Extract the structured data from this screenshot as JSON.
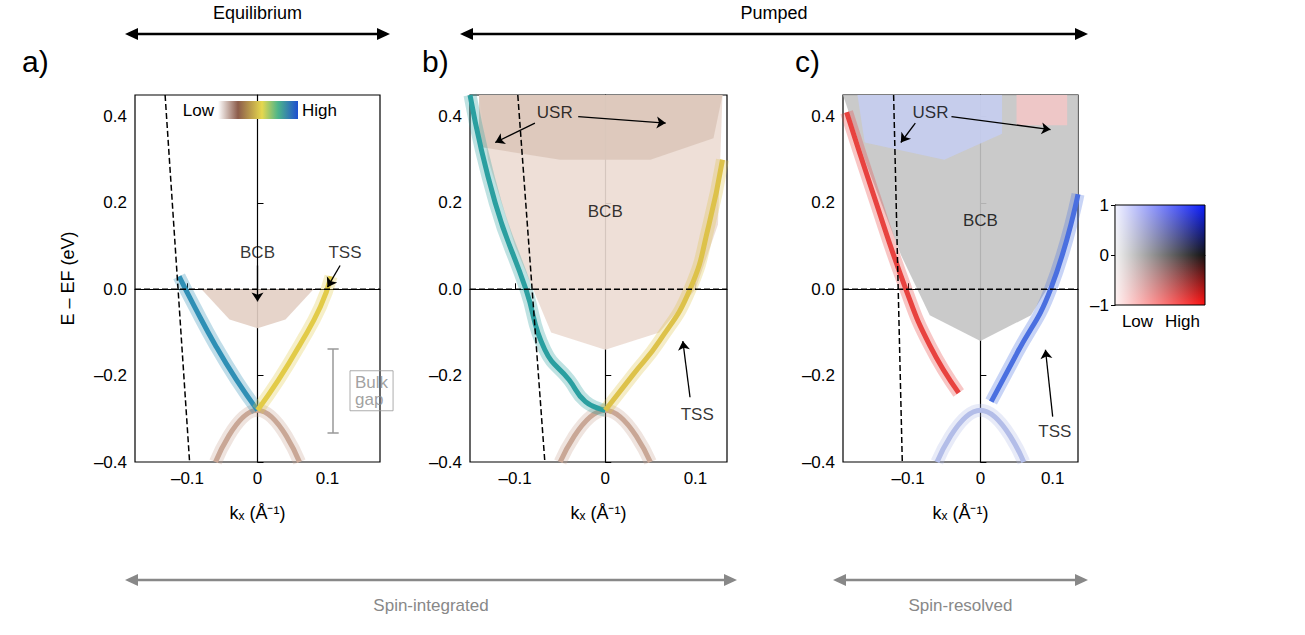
{
  "chart_data": [
    {
      "type": "line",
      "panel": "a)",
      "xlabel": "kₓ (Å⁻¹)",
      "ylabel": "E – EF (eV)",
      "xlim": [
        -0.175,
        0.175
      ],
      "xticks": [
        {
          "value": -0.1,
          "label": "–0.1"
        },
        0,
        0.1
      ],
      "ylim": [
        -0.4,
        0.45
      ],
      "yticks": [
        {
          "value": -0.4,
          "label": "–0.4"
        },
        {
          "value": -0.2,
          "label": "–0.2"
        },
        {
          "value": 0,
          "label": "0.0"
        },
        0.2,
        0.4
      ],
      "colorbar": {
        "labels": [
          "Low",
          "High"
        ]
      },
      "series": [
        {
          "type": "area",
          "color": "#e3cfc4",
          "x": [
            -0.08,
            -0.04,
            0,
            0.04,
            0.08
          ],
          "values": [
            0,
            -0.07,
            -0.09,
            -0.07,
            0
          ]
        },
        {
          "color": "#c9a796",
          "x": [
            -0.06,
            0,
            0.06
          ],
          "values": [
            -0.4,
            -0.28,
            -0.4
          ]
        },
        {
          "color": "#2f8fb5",
          "x": [
            -0.112,
            -0.09,
            -0.06,
            -0.03,
            0
          ],
          "values": [
            0.03,
            -0.04,
            -0.13,
            -0.21,
            -0.28
          ]
        },
        {
          "color": "#e2cb48",
          "x": [
            0,
            0.03,
            0.06,
            0.09,
            0.105
          ],
          "values": [
            -0.28,
            -0.21,
            -0.13,
            -0.04,
            0.03
          ]
        },
        {
          "color": "#000000",
          "line_style": "dashed",
          "x": [
            -0.175,
            0.175
          ],
          "values": [
            0,
            0
          ]
        },
        {
          "color": "#000000",
          "line_style": "dashed",
          "x": [
            -0.132,
            -0.097
          ],
          "values": [
            0.45,
            -0.4
          ]
        }
      ],
      "annotations": [
        {
          "text": "BCB",
          "x": 0,
          "y": 0.085,
          "arrows": [
            {
              "from": [
                0,
                0.055
              ],
              "to": [
                0,
                -0.028
              ]
            }
          ]
        },
        {
          "text": "TSS",
          "x": 0.125,
          "y": 0.085,
          "arrows": [
            {
              "from": [
                0.118,
                0.055
              ],
              "to": [
                0.1,
                0.005
              ]
            }
          ]
        },
        {
          "text": "Bulk gap",
          "x": 0.125,
          "y": -0.235,
          "bracket": {
            "x": 0.108,
            "y": [
              -0.333,
              -0.138
            ]
          }
        }
      ]
    },
    {
      "type": "line",
      "panel": "b)",
      "xlabel": "kₓ (Å⁻¹)",
      "xlim": [
        -0.15,
        0.135
      ],
      "xticks": [
        {
          "value": -0.1,
          "label": "–0.1"
        },
        0,
        0.1
      ],
      "ylim": [
        -0.4,
        0.45
      ],
      "yticks": [
        {
          "value": -0.4,
          "label": "–0.4"
        },
        {
          "value": -0.2,
          "label": "–0.2"
        },
        {
          "value": 0,
          "label": "0.0"
        },
        0.2,
        0.4
      ],
      "series": [
        {
          "type": "area",
          "color": "#ecdcd3",
          "x": [
            -0.06,
            0,
            0.06,
            0.1,
            0.125,
            0.13,
            -0.14,
            -0.13,
            -0.1
          ],
          "values": [
            -0.1,
            -0.14,
            -0.1,
            0,
            0.15,
            0.45,
            0.45,
            0.3,
            0.1
          ]
        },
        {
          "type": "area",
          "color": "#dcc6ba",
          "x": [
            -0.14,
            -0.05,
            0.05,
            0.12,
            0.13,
            -0.14
          ],
          "values": [
            0.33,
            0.3,
            0.3,
            0.35,
            0.45,
            0.45
          ]
        },
        {
          "color": "#c9a796",
          "x": [
            -0.05,
            0,
            0.05
          ],
          "values": [
            -0.4,
            -0.28,
            -0.4
          ]
        },
        {
          "color": "#2a9fa0",
          "x": [
            -0.15,
            -0.122,
            -0.088,
            -0.067,
            -0.04,
            -0.022,
            0
          ],
          "values": [
            0.45,
            0.2,
            0,
            -0.14,
            -0.21,
            -0.26,
            -0.28
          ]
        },
        {
          "color": "#ddc24a",
          "x": [
            0,
            0.03,
            0.06,
            0.094,
            0.115,
            0.13
          ],
          "values": [
            -0.28,
            -0.2,
            -0.12,
            0,
            0.15,
            0.3
          ]
        },
        {
          "color": "#000000",
          "line_style": "dashed",
          "x": [
            -0.15,
            0.135
          ],
          "values": [
            0,
            0
          ]
        },
        {
          "color": "#000000",
          "line_style": "dashed",
          "x": [
            -0.097,
            -0.067
          ],
          "values": [
            0.45,
            -0.4
          ]
        }
      ],
      "annotations": [
        {
          "text": "USR",
          "x": -0.056,
          "y": 0.41,
          "arrows": [
            {
              "from": [
                -0.078,
                0.385
              ],
              "to": [
                -0.122,
                0.34
              ]
            },
            {
              "from": [
                -0.03,
                0.4
              ],
              "to": [
                0.067,
                0.385
              ]
            }
          ]
        },
        {
          "text": "BCB",
          "x": 0,
          "y": 0.18
        },
        {
          "text": "TSS",
          "x": 0.102,
          "y": -0.29,
          "arrows": [
            {
              "from": [
                0.094,
                -0.25
              ],
              "to": [
                0.086,
                -0.12
              ]
            }
          ]
        }
      ]
    },
    {
      "type": "line",
      "panel": "c)",
      "xlabel": "kₓ (Å⁻¹)",
      "xlim": [
        -0.19,
        0.135
      ],
      "xticks": [
        {
          "value": -0.1,
          "label": "–0.1"
        },
        0,
        0.1
      ],
      "ylim": [
        -0.4,
        0.45
      ],
      "yticks": [
        {
          "value": -0.4,
          "label": "–0.4"
        },
        {
          "value": -0.2,
          "label": "–0.2"
        },
        {
          "value": 0,
          "label": "0.0"
        },
        0.2,
        0.4
      ],
      "colorbar": {
        "range": [
          -1,
          1
        ],
        "ticks": [
          1,
          0,
          {
            "value": -1,
            "label": "–1"
          }
        ],
        "labels": [
          "Low",
          "High"
        ]
      },
      "series": [
        {
          "type": "area",
          "color": "#c4c4c4",
          "x": [
            -0.07,
            0,
            0.07,
            0.11,
            0.135,
            0.135,
            -0.19,
            -0.16,
            -0.11
          ],
          "values": [
            -0.06,
            -0.12,
            -0.06,
            0.05,
            0.2,
            0.45,
            0.45,
            0.3,
            0.08
          ]
        },
        {
          "type": "area",
          "color": "#c5cdf0",
          "x": [
            -0.16,
            -0.05,
            0.03,
            0.03,
            -0.17
          ],
          "values": [
            0.34,
            0.3,
            0.36,
            0.45,
            0.45
          ]
        },
        {
          "type": "area",
          "color": "#f2c6c6",
          "x": [
            0.05,
            0.12,
            0.12,
            0.05
          ],
          "values": [
            0.38,
            0.38,
            0.45,
            0.45
          ]
        },
        {
          "color": "#b3bde8",
          "x": [
            -0.06,
            0,
            0.06
          ],
          "values": [
            -0.4,
            -0.28,
            -0.4
          ]
        },
        {
          "color": "#e8423f",
          "x": [
            -0.185,
            -0.15,
            -0.103,
            -0.07,
            -0.03
          ],
          "values": [
            0.41,
            0.23,
            0,
            -0.13,
            -0.24
          ]
        },
        {
          "color": "#4a6fe0",
          "x": [
            0.015,
            0.05,
            0.097,
            0.135
          ],
          "values": [
            -0.26,
            -0.15,
            0,
            0.22
          ]
        },
        {
          "color": "#000000",
          "line_style": "dashed",
          "x": [
            -0.19,
            0.135
          ],
          "values": [
            0,
            0
          ]
        },
        {
          "color": "#000000",
          "line_style": "dashed",
          "x": [
            -0.12,
            -0.108
          ],
          "values": [
            0.45,
            -0.4
          ]
        }
      ],
      "annotations": [
        {
          "text": "USR",
          "x": -0.069,
          "y": 0.41,
          "arrows": [
            {
              "from": [
                -0.09,
                0.385
              ],
              "to": [
                -0.11,
                0.34
              ]
            },
            {
              "from": [
                -0.04,
                0.4
              ],
              "to": [
                0.097,
                0.37
              ]
            }
          ]
        },
        {
          "text": "BCB",
          "x": 0,
          "y": 0.16
        },
        {
          "text": "TSS",
          "x": 0.103,
          "y": -0.33,
          "arrows": [
            {
              "from": [
                0.1,
                -0.295
              ],
              "to": [
                0.09,
                -0.14
              ]
            }
          ]
        }
      ]
    }
  ],
  "figure": {
    "top_labels": [
      {
        "text": "Equilibrium",
        "panels": [
          "a)"
        ]
      },
      {
        "text": "Pumped",
        "panels": [
          "b)",
          "c)"
        ]
      }
    ],
    "bottom_labels": [
      {
        "text": "Spin-integrated",
        "panels": [
          "a)",
          "b)"
        ]
      },
      {
        "text": "Spin-resolved",
        "panels": [
          "c)"
        ]
      }
    ]
  }
}
